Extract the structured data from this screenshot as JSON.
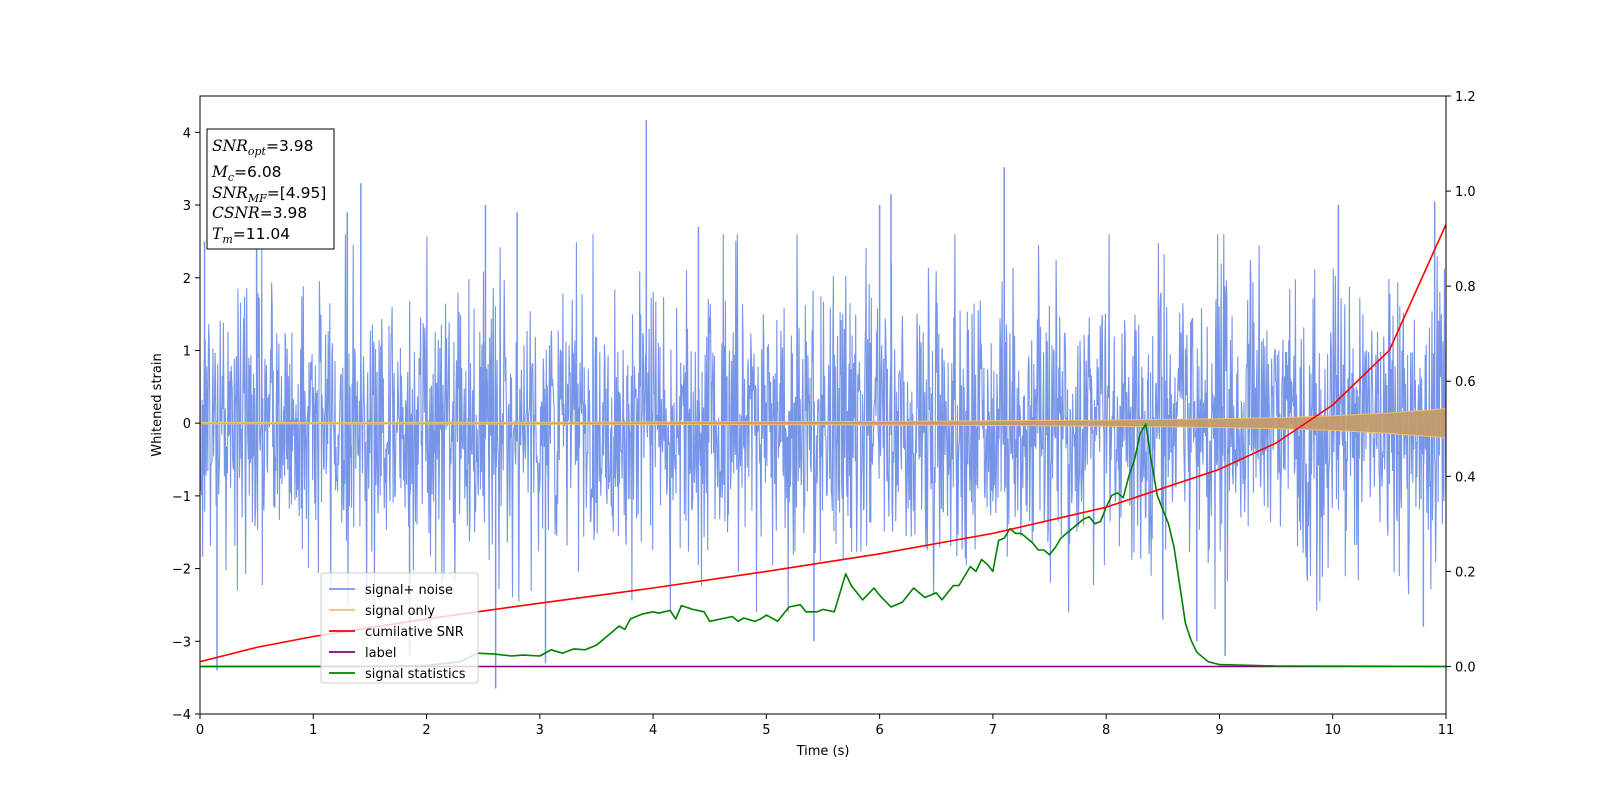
{
  "chart_data": {
    "type": "line",
    "title": "",
    "xlabel": "Time (s)",
    "ylabel": "Whitened strain",
    "ylabel_right": "",
    "xlim": [
      0,
      11
    ],
    "ylim": [
      -4,
      4.5
    ],
    "ylim_right": [
      -0.1,
      1.2
    ],
    "xticks": [
      "0",
      "1",
      "2",
      "3",
      "4",
      "5",
      "6",
      "7",
      "8",
      "9",
      "10",
      "11"
    ],
    "yticks": [
      "−4",
      "−3",
      "−2",
      "−1",
      "0",
      "1",
      "2",
      "3",
      "4"
    ],
    "yticks_right": [
      "0.0",
      "0.2",
      "0.4",
      "0.6",
      "0.8",
      "1.0",
      "1.2"
    ],
    "grid": false,
    "legend_position": "lower-left",
    "info_box": {
      "snr_opt": {
        "sym": "SNR",
        "sub": "opt",
        "val": "=3.98"
      },
      "mc": {
        "sym": "M",
        "sub": "c",
        "val": "=6.08"
      },
      "snr_mf": {
        "sym": "SNR",
        "sub": "MF",
        "val": "=[4.95]"
      },
      "csnr": {
        "sym": "CSNR",
        "sub": "",
        "val": "=3.98"
      },
      "tm": {
        "sym": "T",
        "sub": "m",
        "val": "=11.04"
      }
    },
    "series": [
      {
        "name": "signal+ noise",
        "axis": "left",
        "color": "#7694e8",
        "description_note": "dense noise trace",
        "noise_envelope": {
          "typical_min": -2.0,
          "typical_max": 2.0
        },
        "spikes": [
          {
            "x": 0.04,
            "y": 2.5
          },
          {
            "x": 0.15,
            "y": -3.4
          },
          {
            "x": 0.5,
            "y": 2.6
          },
          {
            "x": 1.3,
            "y": 2.9
          },
          {
            "x": 1.42,
            "y": 3.3
          },
          {
            "x": 1.85,
            "y": -3.2
          },
          {
            "x": 2.52,
            "y": 3.0
          },
          {
            "x": 2.61,
            "y": -3.65
          },
          {
            "x": 2.8,
            "y": 2.9
          },
          {
            "x": 3.05,
            "y": -3.3
          },
          {
            "x": 3.94,
            "y": 4.17
          },
          {
            "x": 4.4,
            "y": 2.7
          },
          {
            "x": 5.42,
            "y": -3.0
          },
          {
            "x": 6.0,
            "y": 3.0
          },
          {
            "x": 6.1,
            "y": 3.15
          },
          {
            "x": 7.1,
            "y": 3.52
          },
          {
            "x": 8.5,
            "y": -2.7
          },
          {
            "x": 8.8,
            "y": -3.0
          },
          {
            "x": 9.05,
            "y": -3.2
          },
          {
            "x": 10.05,
            "y": 3.0
          },
          {
            "x": 10.9,
            "y": 3.05
          },
          {
            "x": 10.8,
            "y": -2.8
          }
        ]
      },
      {
        "name": "signal only",
        "axis": "left",
        "color": "#f5bf6b",
        "envelope": [
          [
            0,
            0.01
          ],
          [
            1,
            0.01
          ],
          [
            2,
            0.012
          ],
          [
            3,
            0.014
          ],
          [
            4,
            0.017
          ],
          [
            5,
            0.02
          ],
          [
            6,
            0.025
          ],
          [
            7,
            0.032
          ],
          [
            8,
            0.042
          ],
          [
            9,
            0.06
          ],
          [
            9.5,
            0.075
          ],
          [
            10,
            0.1
          ],
          [
            10.5,
            0.14
          ],
          [
            11,
            0.2
          ]
        ]
      },
      {
        "name": "cumilative SNR",
        "axis": "right",
        "color": "#ff0000",
        "points": [
          [
            0,
            0.01
          ],
          [
            0.5,
            0.04
          ],
          [
            1,
            0.063
          ],
          [
            2,
            0.1
          ],
          [
            3,
            0.133
          ],
          [
            4,
            0.165
          ],
          [
            5,
            0.2
          ],
          [
            6,
            0.237
          ],
          [
            7,
            0.28
          ],
          [
            8,
            0.335
          ],
          [
            9,
            0.415
          ],
          [
            9.5,
            0.47
          ],
          [
            10,
            0.55
          ],
          [
            10.5,
            0.665
          ],
          [
            11,
            0.93
          ]
        ]
      },
      {
        "name": "label",
        "axis": "right",
        "color": "#800080",
        "points": [
          [
            0,
            0.0
          ],
          [
            11,
            0.0
          ]
        ]
      },
      {
        "name": "signal statistics",
        "axis": "right",
        "color": "#008000",
        "points": [
          [
            0,
            0.0
          ],
          [
            1.5,
            0.0
          ],
          [
            2.0,
            0.002
          ],
          [
            2.3,
            0.01
          ],
          [
            2.45,
            0.028
          ],
          [
            2.6,
            0.026
          ],
          [
            2.75,
            0.022
          ],
          [
            2.85,
            0.024
          ],
          [
            3.0,
            0.022
          ],
          [
            3.1,
            0.035
          ],
          [
            3.2,
            0.028
          ],
          [
            3.3,
            0.037
          ],
          [
            3.4,
            0.035
          ],
          [
            3.5,
            0.045
          ],
          [
            3.6,
            0.065
          ],
          [
            3.7,
            0.085
          ],
          [
            3.75,
            0.078
          ],
          [
            3.8,
            0.1
          ],
          [
            3.9,
            0.11
          ],
          [
            4.0,
            0.115
          ],
          [
            4.05,
            0.112
          ],
          [
            4.15,
            0.118
          ],
          [
            4.2,
            0.1
          ],
          [
            4.25,
            0.128
          ],
          [
            4.35,
            0.12
          ],
          [
            4.45,
            0.115
          ],
          [
            4.5,
            0.095
          ],
          [
            4.6,
            0.1
          ],
          [
            4.7,
            0.105
          ],
          [
            4.75,
            0.095
          ],
          [
            4.8,
            0.102
          ],
          [
            4.9,
            0.095
          ],
          [
            4.95,
            0.1
          ],
          [
            5.0,
            0.108
          ],
          [
            5.1,
            0.095
          ],
          [
            5.2,
            0.125
          ],
          [
            5.3,
            0.13
          ],
          [
            5.35,
            0.115
          ],
          [
            5.45,
            0.115
          ],
          [
            5.5,
            0.12
          ],
          [
            5.6,
            0.115
          ],
          [
            5.7,
            0.195
          ],
          [
            5.75,
            0.17
          ],
          [
            5.8,
            0.155
          ],
          [
            5.85,
            0.14
          ],
          [
            5.95,
            0.165
          ],
          [
            6.0,
            0.15
          ],
          [
            6.1,
            0.125
          ],
          [
            6.2,
            0.135
          ],
          [
            6.3,
            0.165
          ],
          [
            6.4,
            0.145
          ],
          [
            6.5,
            0.155
          ],
          [
            6.55,
            0.14
          ],
          [
            6.65,
            0.17
          ],
          [
            6.7,
            0.17
          ],
          [
            6.75,
            0.19
          ],
          [
            6.8,
            0.21
          ],
          [
            6.85,
            0.2
          ],
          [
            6.9,
            0.225
          ],
          [
            6.95,
            0.215
          ],
          [
            7.0,
            0.2
          ],
          [
            7.05,
            0.265
          ],
          [
            7.1,
            0.27
          ],
          [
            7.15,
            0.29
          ],
          [
            7.2,
            0.28
          ],
          [
            7.25,
            0.28
          ],
          [
            7.3,
            0.27
          ],
          [
            7.35,
            0.26
          ],
          [
            7.4,
            0.245
          ],
          [
            7.45,
            0.245
          ],
          [
            7.5,
            0.235
          ],
          [
            7.55,
            0.25
          ],
          [
            7.6,
            0.27
          ],
          [
            7.65,
            0.28
          ],
          [
            7.7,
            0.29
          ],
          [
            7.8,
            0.31
          ],
          [
            7.85,
            0.315
          ],
          [
            7.9,
            0.3
          ],
          [
            7.95,
            0.305
          ],
          [
            8.0,
            0.335
          ],
          [
            8.05,
            0.36
          ],
          [
            8.1,
            0.365
          ],
          [
            8.15,
            0.355
          ],
          [
            8.2,
            0.4
          ],
          [
            8.25,
            0.435
          ],
          [
            8.3,
            0.49
          ],
          [
            8.35,
            0.51
          ],
          [
            8.4,
            0.43
          ],
          [
            8.45,
            0.36
          ],
          [
            8.5,
            0.33
          ],
          [
            8.55,
            0.3
          ],
          [
            8.6,
            0.25
          ],
          [
            8.65,
            0.17
          ],
          [
            8.7,
            0.09
          ],
          [
            8.75,
            0.055
          ],
          [
            8.8,
            0.03
          ],
          [
            8.9,
            0.01
          ],
          [
            9.0,
            0.004
          ],
          [
            9.5,
            0.001
          ],
          [
            11,
            0.0
          ]
        ]
      }
    ]
  }
}
